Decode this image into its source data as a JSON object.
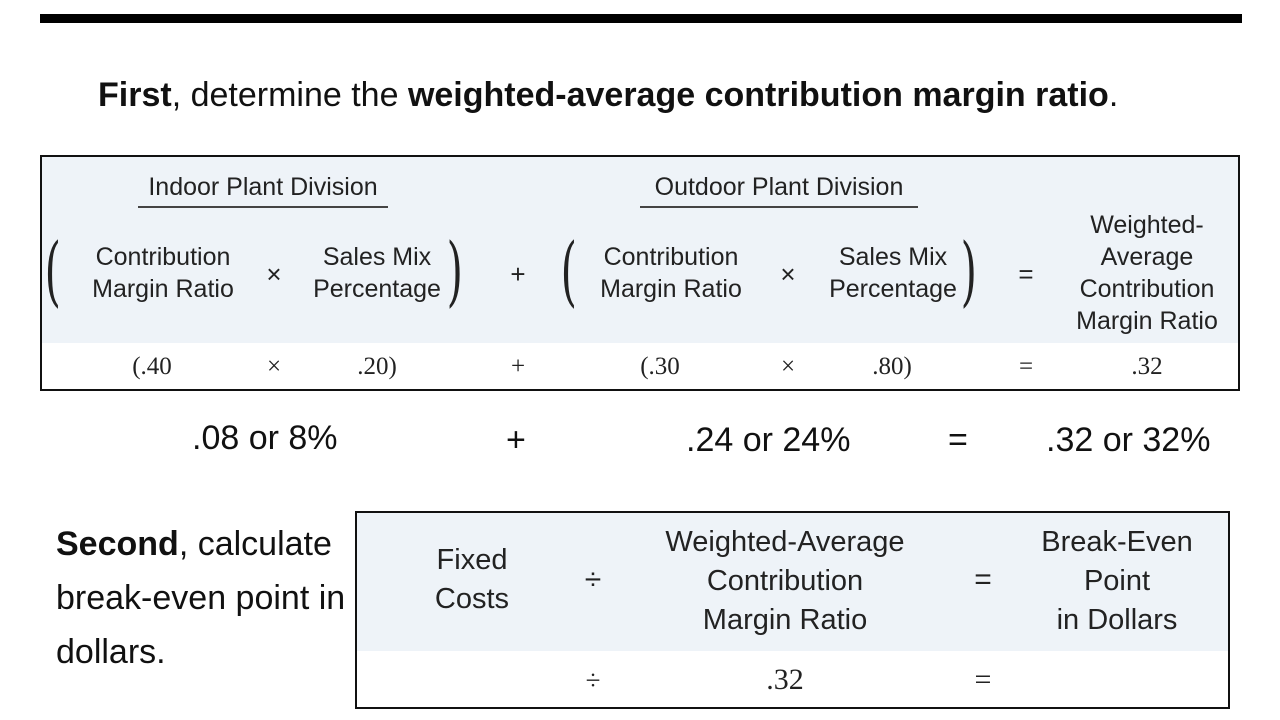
{
  "heading": {
    "part1": "First",
    "part2": ", determine the ",
    "part3": "weighted-average contribution margin ratio",
    "part4": "."
  },
  "table1": {
    "indoor_title": "Indoor Plant Division",
    "outdoor_title": "Outdoor Plant Division",
    "indoor_cm_line1": "Contribution",
    "indoor_cm_line2": "Margin Ratio",
    "indoor_sm_line1": "Sales Mix",
    "indoor_sm_line2": "Percentage",
    "outdoor_cm_line1": "Contribution",
    "outdoor_cm_line2": "Margin Ratio",
    "outdoor_sm_line1": "Sales Mix",
    "outdoor_sm_line2": "Percentage",
    "result_line1": "Weighted-",
    "result_line2": "Average",
    "result_line3": "Contribution",
    "result_line4": "Margin Ratio",
    "times": "×",
    "plus": "+",
    "equals": "=",
    "values": {
      "indoor_cm": "(.40",
      "indoor_sm": ".20)",
      "outdoor_cm": "(.30",
      "outdoor_sm": ".80)",
      "result": ".32"
    }
  },
  "results_row": {
    "indoor": ".08 or 8%",
    "plus": "+",
    "outdoor": ".24 or 24%",
    "equals": "=",
    "total": ".32 or 32%"
  },
  "second": {
    "bold": "Second",
    "rest": ", calculate break-even point in dollars."
  },
  "table2": {
    "fixed_line1": "Fixed",
    "fixed_line2": "Costs",
    "divide": "÷",
    "wacm_line1": "Weighted-Average",
    "wacm_line2": "Contribution",
    "wacm_line3": "Margin Ratio",
    "equals": "=",
    "bep_line1": "Break-Even",
    "bep_line2": "Point",
    "bep_line3": "in Dollars",
    "value_wacm": ".32"
  },
  "colors": {
    "accent_red": "#d9262c",
    "header_bg": "#eef3f8"
  }
}
